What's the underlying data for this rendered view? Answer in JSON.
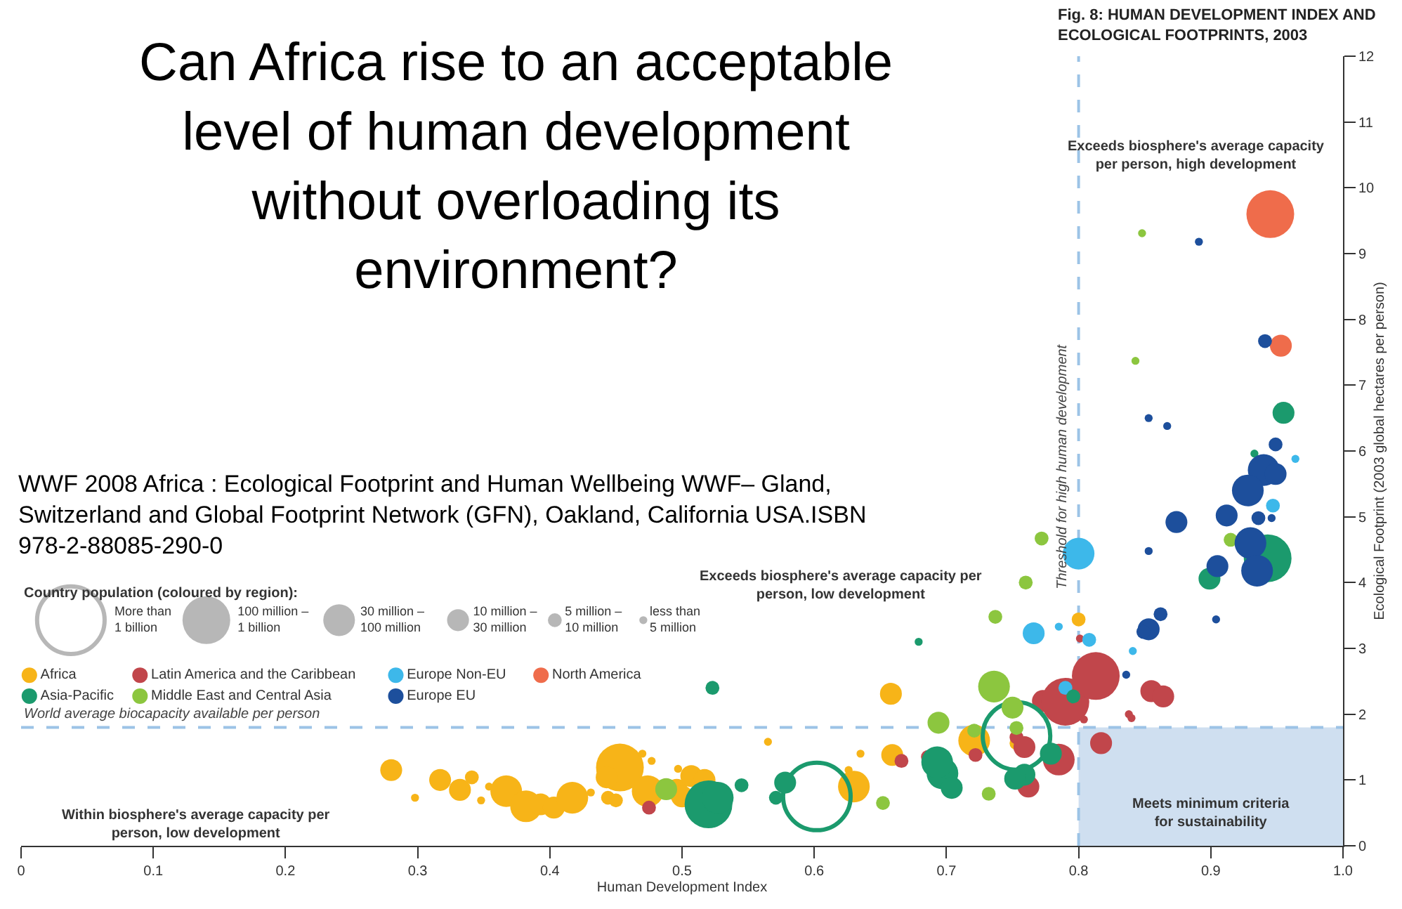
{
  "chart_data": {
    "type": "bubble",
    "title": "Can Africa rise to an acceptable level of human development without overloading its environment?",
    "subtitle": "Fig. 8: HUMAN DEVELOPMENT INDEX AND ECOLOGICAL FOOTPRINTS, 2003",
    "xlabel": "Human Development Index",
    "ylabel": "Ecological Footprint (2003 global hectares per person)",
    "legend_title": "Country population (coloured by region):",
    "xlim": [
      0,
      1
    ],
    "xticks": [
      0,
      0.1,
      0.2,
      0.3,
      0.4,
      0.5,
      0.6,
      0.7,
      0.8,
      0.9,
      {
        "value": 1,
        "label": "1.0"
      }
    ],
    "ylim": [
      0,
      12
    ],
    "yticks": [
      0,
      1,
      2,
      3,
      4,
      5,
      6,
      7,
      8,
      9,
      10,
      11,
      12
    ],
    "grid": false,
    "legend": "left",
    "size_legend": [
      {
        "value": 1,
        "label": "More than\n1 billion"
      },
      {
        "value": 0.5,
        "label": "100 million –\n1 billion"
      },
      {
        "value": 0.22,
        "label": "30 million –\n100 million"
      },
      {
        "value": 0.105,
        "label": "10 million –\n30 million"
      },
      {
        "value": 0.042,
        "label": "5 million –\n10 million"
      },
      {
        "value": 0.014,
        "label": "less than\n5 million"
      }
    ],
    "series": [
      {
        "name": "Africa",
        "color": "#f7b418",
        "x": [
          0.28,
          0.298,
          0.317,
          0.332,
          0.341,
          0.348,
          0.354,
          0.367,
          0.382,
          0.393,
          0.403,
          0.417,
          0.431,
          0.444,
          0.45,
          0.453,
          0.443,
          0.47,
          0.477,
          0.474,
          0.497,
          0.496,
          0.507,
          0.517,
          0.5,
          0.565,
          0.626,
          0.635,
          0.63,
          0.658,
          0.659,
          0.721,
          0.753,
          0.8
        ],
        "values": [
          1.15,
          0.73,
          1.0,
          0.85,
          1.04,
          0.69,
          0.9,
          0.83,
          0.6,
          0.63,
          0.58,
          0.73,
          0.81,
          0.73,
          0.69,
          1.19,
          1.04,
          1.4,
          1.29,
          0.83,
          1.17,
          0.85,
          1.06,
          1.0,
          0.75,
          1.58,
          1.15,
          1.4,
          0.9,
          2.31,
          1.38,
          1.6,
          1.56,
          3.44
        ],
        "sizes": [
          0.105,
          0.014,
          0.105,
          0.105,
          0.042,
          0.014,
          0.014,
          0.22,
          0.22,
          0.105,
          0.105,
          0.22,
          0.014,
          0.042,
          0.042,
          0.5,
          0.105,
          0.014,
          0.014,
          0.22,
          0.014,
          0.105,
          0.105,
          0.105,
          0.105,
          0.014,
          0.014,
          0.014,
          0.22,
          0.105,
          0.105,
          0.22,
          0.042,
          0.042
        ]
      },
      {
        "name": "Latin America and the Caribbean",
        "color": "#c1464b",
        "x": [
          0.475,
          0.686,
          0.666,
          0.722,
          0.753,
          0.759,
          0.762,
          0.773,
          0.785,
          0.79,
          0.813,
          0.801,
          0.804,
          0.817,
          0.838,
          0.84,
          0.855,
          0.864
        ],
        "values": [
          0.58,
          1.35,
          1.29,
          1.38,
          1.65,
          1.5,
          0.9,
          2.2,
          1.31,
          2.19,
          2.58,
          3.15,
          1.92,
          1.56,
          2.0,
          1.94,
          2.35,
          2.27
        ],
        "sizes": [
          0.042,
          0.042,
          0.042,
          0.042,
          0.042,
          0.105,
          0.105,
          0.105,
          0.22,
          0.5,
          0.5,
          0.014,
          0.014,
          0.105,
          0.014,
          0.014,
          0.105,
          0.105
        ]
      },
      {
        "name": "Europe Non-EU",
        "color": "#3db8ea",
        "x": [
          0.8,
          0.766,
          0.785,
          0.808,
          0.841,
          0.79,
          0.964,
          0.947
        ],
        "values": [
          4.44,
          3.23,
          3.33,
          3.13,
          2.96,
          2.4,
          5.88,
          5.17
        ],
        "sizes": [
          0.22,
          0.105,
          0.014,
          0.042,
          0.014,
          0.042,
          0.014,
          0.042
        ]
      },
      {
        "name": "North America",
        "color": "#ef6c4b",
        "x": [
          0.945,
          0.953
        ],
        "values": [
          9.6,
          7.6
        ],
        "sizes": [
          0.5,
          0.105
        ]
      },
      {
        "name": "Asia-Pacific",
        "color": "#1b9a6d",
        "x": [
          0.955,
          0.933,
          0.943,
          0.899,
          0.523,
          0.679,
          0.796,
          0.753,
          0.602,
          0.52,
          0.527,
          0.545,
          0.578,
          0.571,
          0.697,
          0.704,
          0.693,
          0.779,
          0.759,
          0.752
        ],
        "values": [
          6.58,
          5.96,
          4.37,
          4.06,
          2.4,
          3.1,
          2.27,
          1.67,
          0.75,
          0.63,
          0.73,
          0.92,
          0.96,
          0.73,
          1.1,
          0.88,
          1.27,
          1.4,
          1.08,
          1.02
        ],
        "sizes": [
          0.105,
          0.014,
          0.5,
          0.105,
          0.042,
          0.014,
          0.042,
          1,
          1,
          0.5,
          0.22,
          0.042,
          0.105,
          0.042,
          0.22,
          0.105,
          0.22,
          0.105,
          0.105,
          0.105
        ]
      },
      {
        "name": "Middle East and Central Asia",
        "color": "#8cc63f",
        "x": [
          0.848,
          0.843,
          0.772,
          0.915,
          0.76,
          0.737,
          0.736,
          0.75,
          0.694,
          0.721,
          0.753,
          0.732,
          0.652,
          0.488
        ],
        "values": [
          9.31,
          7.37,
          4.67,
          4.65,
          4.0,
          3.48,
          2.42,
          2.1,
          1.87,
          1.75,
          1.79,
          0.79,
          0.65,
          0.86
        ],
        "sizes": [
          0.014,
          0.014,
          0.042,
          0.042,
          0.042,
          0.042,
          0.22,
          0.105,
          0.105,
          0.042,
          0.042,
          0.042,
          0.042,
          0.105
        ]
      },
      {
        "name": "Europe EU",
        "color": "#1d4f9c",
        "x": [
          0.891,
          0.941,
          0.853,
          0.867,
          0.949,
          0.94,
          0.949,
          0.928,
          0.912,
          0.874,
          0.936,
          0.946,
          0.853,
          0.93,
          0.905,
          0.935,
          0.853,
          0.862,
          0.849,
          0.904,
          0.836
        ],
        "values": [
          9.18,
          7.67,
          6.5,
          6.38,
          6.1,
          5.71,
          5.65,
          5.4,
          5.02,
          4.92,
          4.98,
          4.98,
          4.48,
          4.6,
          4.25,
          4.18,
          3.29,
          3.52,
          3.25,
          3.44,
          2.6
        ],
        "sizes": [
          0.014,
          0.042,
          0.014,
          0.014,
          0.042,
          0.22,
          0.105,
          0.22,
          0.105,
          0.105,
          0.042,
          0.014,
          0.014,
          0.22,
          0.105,
          0.22,
          0.105,
          0.042,
          0.042,
          0.014,
          0.014
        ]
      }
    ],
    "ref_lines": [
      {
        "axis": "y",
        "value": 1.8,
        "label": "World average biocapacity available per person",
        "color": "#9cc3e6",
        "line_style": "dashed"
      },
      {
        "axis": "x",
        "value": 0.8,
        "label": "Threshold for high human development",
        "color": "#9cc3e6",
        "line_style": "dashed"
      }
    ],
    "bands": [
      {
        "axis": "x",
        "from": 0.8,
        "to": 1,
        "label": "Meets minimum criteria for sustainability",
        "color": "#cfdff0"
      }
    ],
    "annotations": [
      "WWF 2008 Africa : Ecological Footprint and Human Wellbeing WWF– Gland, Switzerland and Global Footprint Network (GFN), Oakland, California USA.ISBN 978-2-88085-290-0",
      "Exceeds biosphere's average capacity per person, high development",
      "Exceeds biosphere's average capacity per person, low development",
      "Within biosphere's average capacity per person, low development"
    ]
  }
}
